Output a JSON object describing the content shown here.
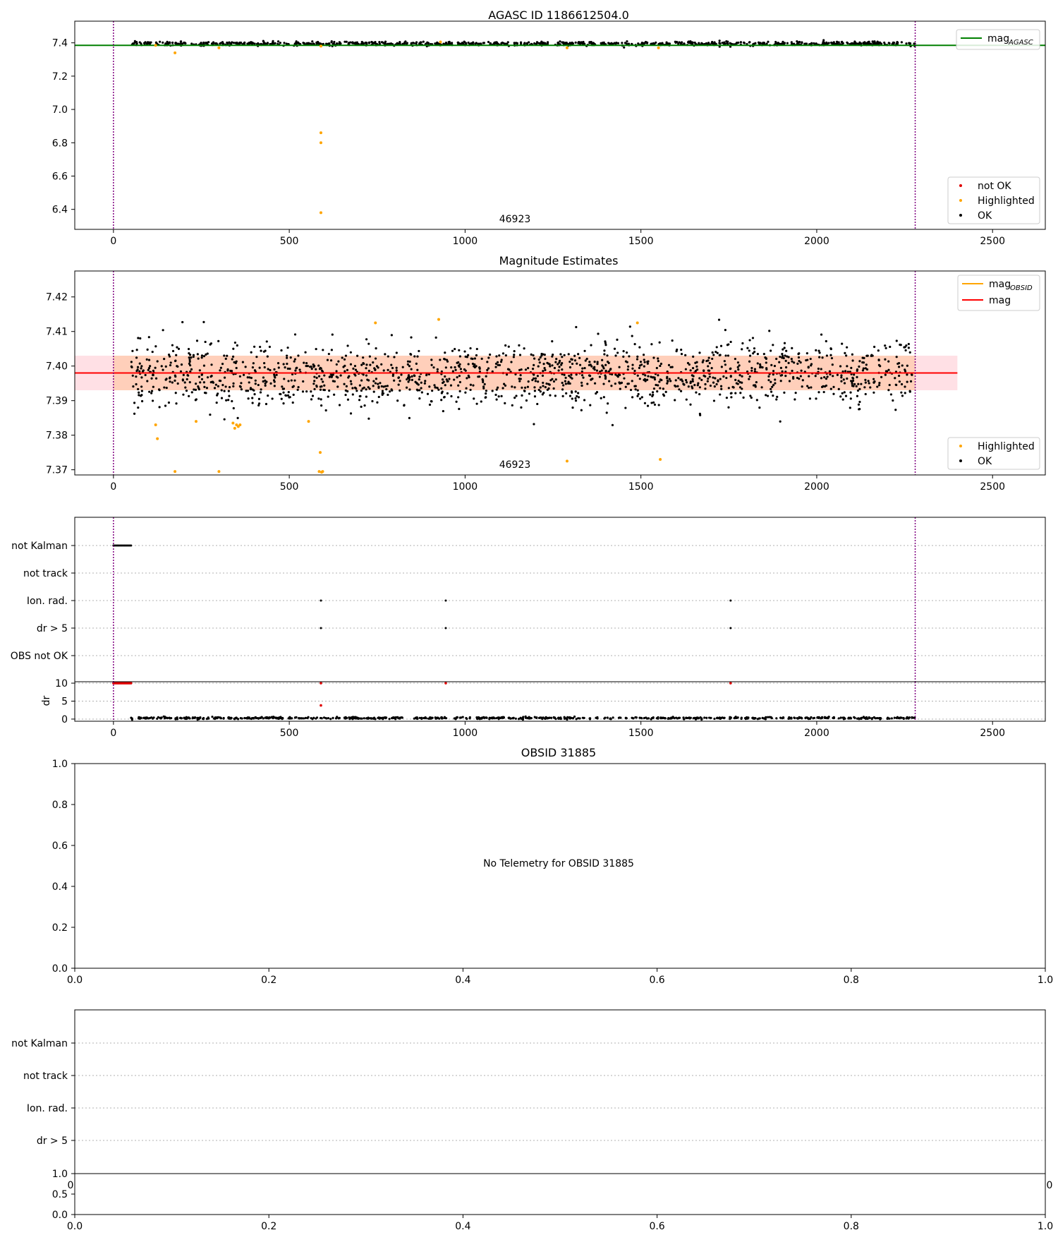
{
  "colors": {
    "ok": "#000000",
    "highlighted": "#ffa500",
    "not_ok": "#e00000",
    "mag_line": "#ff0000",
    "mag_obsid": "#ffa500",
    "mag_agasc": "#008000",
    "obs_boundary": "#800080",
    "band_outer": "#ffd6dc",
    "band_inner": "#ffc8a8",
    "grid": "#b0b0b0"
  },
  "chart_data": [
    {
      "id": "agasc",
      "type": "scatter",
      "title": "AGASC ID 1186612504.0",
      "xlim": [
        -110,
        2650
      ],
      "ylim": [
        6.28,
        7.53
      ],
      "xticks": [
        0,
        500,
        1000,
        1500,
        2000,
        2500
      ],
      "yticks": [
        6.4,
        6.6,
        6.8,
        7.0,
        7.2,
        7.4
      ],
      "ytick_labels": [
        "6.4",
        "6.6",
        "6.8",
        "7.0",
        "7.2",
        "7.4"
      ],
      "obs_boundaries": [
        0,
        2280
      ],
      "obsid_label": "46923",
      "obsid_label_x": 1140,
      "mag_agasc": 7.385,
      "ok_series": {
        "name": "OK",
        "x_range": [
          50,
          2280
        ],
        "center": 7.395,
        "spread": 0.006,
        "count": 900,
        "seed": 11
      },
      "highlighted": [
        [
          175,
          7.34
        ],
        [
          300,
          7.37
        ],
        [
          590,
          7.38
        ],
        [
          590,
          6.86
        ],
        [
          590,
          6.8
        ],
        [
          590,
          6.38
        ],
        [
          120,
          7.385
        ],
        [
          1290,
          7.37
        ],
        [
          1550,
          7.37
        ],
        [
          930,
          7.405
        ]
      ],
      "legend_top": [
        {
          "label": "mag",
          "sub": "AGASC",
          "color_key": "mag_agasc"
        }
      ],
      "legend_bottom": [
        {
          "label": "not OK",
          "color_key": "not_ok"
        },
        {
          "label": "Highlighted",
          "color_key": "highlighted"
        },
        {
          "label": "OK",
          "color_key": "ok"
        }
      ]
    },
    {
      "id": "mag_estimates",
      "type": "scatter",
      "title": "Magnitude Estimates",
      "xlim": [
        -110,
        2650
      ],
      "ylim": [
        7.3685,
        7.4275
      ],
      "xticks": [
        0,
        500,
        1000,
        1500,
        2000,
        2500
      ],
      "yticks": [
        7.37,
        7.38,
        7.39,
        7.4,
        7.41,
        7.42
      ],
      "ytick_labels": [
        "7.37",
        "7.38",
        "7.39",
        "7.40",
        "7.41",
        "7.42"
      ],
      "obs_boundaries": [
        0,
        2280
      ],
      "obsid_label": "46923",
      "obsid_label_x": 1140,
      "mag": 7.398,
      "mag_band": [
        7.393,
        7.403
      ],
      "mag_band_x": [
        -110,
        2400
      ],
      "mag_obsid": 7.398,
      "mag_obsid_band": [
        7.393,
        7.403
      ],
      "mag_obsid_band_x": [
        0,
        2280
      ],
      "ok_series": {
        "name": "OK",
        "x_range": [
          50,
          2280
        ],
        "center": 7.3975,
        "spread": 0.0045,
        "count": 1550,
        "seed": 7
      },
      "highlighted": [
        [
          120,
          7.383
        ],
        [
          125,
          7.379
        ],
        [
          235,
          7.384
        ],
        [
          175,
          7.3695
        ],
        [
          300,
          7.3695
        ],
        [
          340,
          7.3835
        ],
        [
          345,
          7.382
        ],
        [
          350,
          7.383
        ],
        [
          355,
          7.3825
        ],
        [
          360,
          7.383
        ],
        [
          555,
          7.384
        ],
        [
          585,
          7.3695
        ],
        [
          588,
          7.375
        ],
        [
          592,
          7.3693
        ],
        [
          595,
          7.3695
        ],
        [
          745,
          7.4125
        ],
        [
          925,
          7.4135
        ],
        [
          1290,
          7.3725
        ],
        [
          1490,
          7.4125
        ],
        [
          1555,
          7.373
        ]
      ],
      "legend_top": [
        {
          "label": "mag",
          "sub": "OBSID",
          "color_key": "mag_obsid"
        },
        {
          "label": "mag",
          "sub": "",
          "color_key": "mag_line"
        }
      ],
      "legend_bottom": [
        {
          "label": "Highlighted",
          "color_key": "highlighted"
        },
        {
          "label": "OK",
          "color_key": "ok"
        }
      ]
    },
    {
      "id": "flags",
      "type": "scatter",
      "title": "",
      "xlim": [
        -110,
        2650
      ],
      "categories": [
        "not Kalman",
        "not track",
        "Ion. rad.",
        "dr > 5",
        "OBS not OK"
      ],
      "obs_boundaries": [
        0,
        2280
      ],
      "events": [
        {
          "category": "not Kalman",
          "x_range": [
            0,
            50
          ],
          "count": 14
        },
        {
          "category": "Ion. rad.",
          "x": [
            590,
            945,
            1755
          ]
        },
        {
          "category": "dr > 5",
          "x": [
            590,
            945,
            1755
          ]
        }
      ]
    },
    {
      "id": "dr",
      "type": "scatter",
      "ylabel": "dr",
      "xlim": [
        -110,
        2650
      ],
      "ylim": [
        -0.6,
        10.4
      ],
      "yticks": [
        0,
        5,
        10
      ],
      "ytick_labels": [
        "0",
        "5",
        "10"
      ],
      "xticks": [
        0,
        500,
        1000,
        1500,
        2000,
        2500
      ],
      "obs_boundaries": [
        0,
        2280
      ],
      "ok_series": {
        "name": "OK",
        "x_range": [
          50,
          2280
        ],
        "center": 0.3,
        "spread": 0.15,
        "count": 700,
        "seed": 3
      },
      "not_ok": [
        [
          590,
          10
        ],
        [
          945,
          10
        ],
        [
          1755,
          10
        ],
        [
          590,
          3.8
        ]
      ],
      "not_ok_range": {
        "x_range": [
          0,
          50
        ],
        "y": 10,
        "count": 14
      }
    },
    {
      "id": "obsid",
      "type": "scatter",
      "title": "OBSID 31885",
      "xlim": [
        0,
        1
      ],
      "ylim": [
        0,
        1
      ],
      "xticks": [
        0,
        0.2,
        0.4,
        0.6,
        0.8,
        1.0
      ],
      "xtick_labels": [
        "0.0",
        "0.2",
        "0.4",
        "0.6",
        "0.8",
        "1.0"
      ],
      "yticks": [
        0,
        0.2,
        0.4,
        0.6,
        0.8,
        1.0
      ],
      "ytick_labels": [
        "0.0",
        "0.2",
        "0.4",
        "0.6",
        "0.8",
        "1.0"
      ],
      "annotation": "No Telemetry for OBSID 31885"
    },
    {
      "id": "flags2",
      "type": "scatter",
      "title": "",
      "categories": [
        "not Kalman",
        "not track",
        "Ion. rad.",
        "dr > 5"
      ],
      "overlap_tick_left": "0",
      "overlap_tick_right": "0"
    },
    {
      "id": "bottom",
      "type": "scatter",
      "xlim": [
        0,
        1
      ],
      "ylim": [
        0,
        1
      ],
      "xticks": [
        0,
        0.2,
        0.4,
        0.6,
        0.8,
        1.0
      ],
      "xtick_labels": [
        "0.0",
        "0.2",
        "0.4",
        "0.6",
        "0.8",
        "1.0"
      ],
      "yticks": [
        0,
        0.5,
        1.0
      ],
      "ytick_labels": [
        "0.0",
        "0.5",
        "1.0"
      ]
    }
  ]
}
